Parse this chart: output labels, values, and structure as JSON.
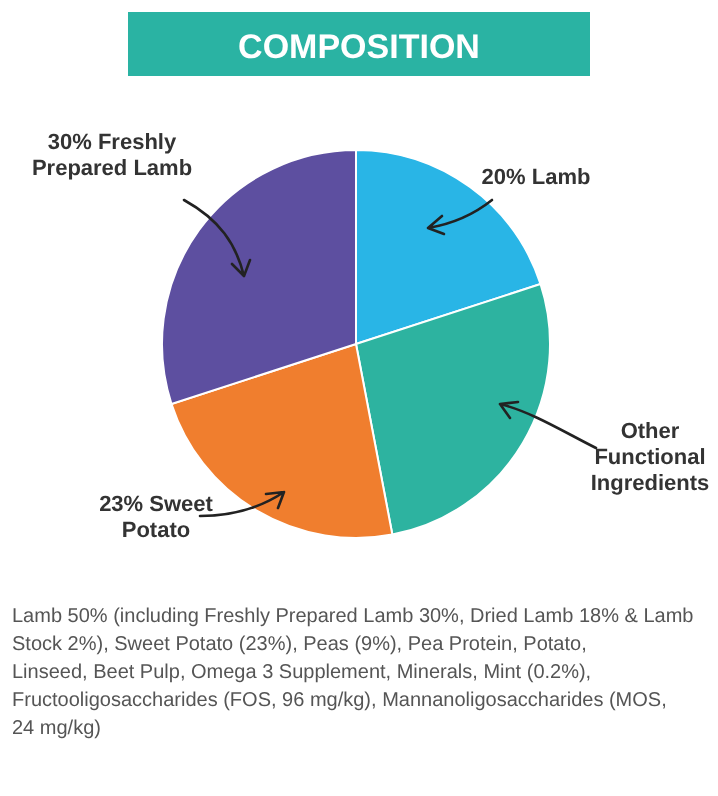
{
  "chart_data": {
    "type": "pie",
    "title": "COMPOSITION",
    "categories": [
      "20% Lamb",
      "Other Functional Ingredients",
      "23% Sweet Potato",
      "30% Freshly Prepared Lamb"
    ],
    "values": [
      20,
      27,
      23,
      30
    ],
    "colors": [
      "#29b5e6",
      "#2db3a0",
      "#f07e2e",
      "#5d4fa0"
    ],
    "annotations": [
      "Lamb 50% (including Freshly Prepared Lamb 30%, Dried Lamb 18% & Lamb Stock 2%), Sweet Potato (23%), Peas (9%), Pea Protein, Potato, Linseed, Beet Pulp, Omega 3 Supplement, Minerals, Mint (0.2%), Fructooligosaccharides (FOS, 96 mg/kg), Mannanoligosaccharides (MOS, 24 mg/kg)"
    ]
  }
}
